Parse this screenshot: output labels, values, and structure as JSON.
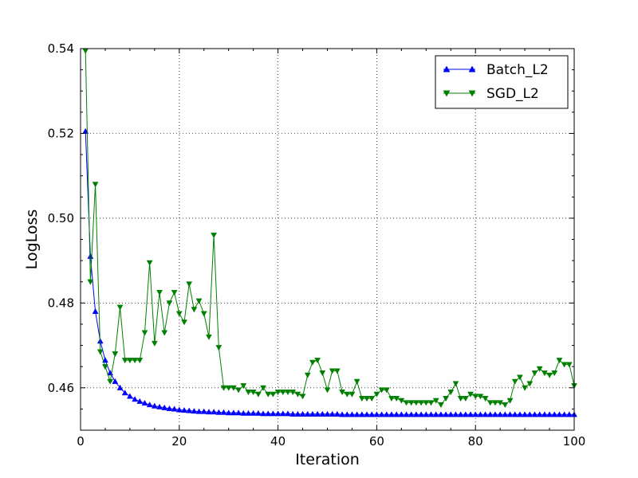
{
  "chart_data": {
    "type": "line",
    "title": "",
    "xlabel": "Iteration",
    "ylabel": "LogLoss",
    "xlim": [
      0,
      100
    ],
    "ylim": [
      0.45,
      0.54
    ],
    "x_ticks": [
      0,
      20,
      40,
      60,
      80,
      100
    ],
    "x_tick_labels": [
      "0",
      "20",
      "40",
      "60",
      "80",
      "100"
    ],
    "y_ticks": [
      0.46,
      0.48,
      0.5,
      0.52,
      0.54
    ],
    "y_tick_labels": [
      "0.46",
      "0.48",
      "0.50",
      "0.52",
      "0.54"
    ],
    "grid": true,
    "legend_position": "top-right",
    "series": [
      {
        "name": "Batch_L2",
        "color": "#0000ff",
        "marker": "triangle-up",
        "x": [
          1,
          2,
          3,
          4,
          5,
          6,
          7,
          8,
          9,
          10,
          11,
          12,
          13,
          14,
          15,
          16,
          17,
          18,
          19,
          20,
          21,
          22,
          23,
          24,
          25,
          26,
          27,
          28,
          29,
          30,
          31,
          32,
          33,
          34,
          35,
          36,
          37,
          38,
          39,
          40,
          41,
          42,
          43,
          44,
          45,
          46,
          47,
          48,
          49,
          50,
          51,
          52,
          53,
          54,
          55,
          56,
          57,
          58,
          59,
          60,
          61,
          62,
          63,
          64,
          65,
          66,
          67,
          68,
          69,
          70,
          71,
          72,
          73,
          74,
          75,
          76,
          77,
          78,
          79,
          80,
          81,
          82,
          83,
          84,
          85,
          86,
          87,
          88,
          89,
          90,
          91,
          92,
          93,
          94,
          95,
          96,
          97,
          98,
          99,
          100
        ],
        "values": [
          0.5205,
          0.491,
          0.478,
          0.471,
          0.4665,
          0.4635,
          0.4615,
          0.46,
          0.4588,
          0.458,
          0.4573,
          0.4568,
          0.4564,
          0.456,
          0.4557,
          0.4555,
          0.4553,
          0.4551,
          0.455,
          0.4548,
          0.4547,
          0.4546,
          0.4545,
          0.4544,
          0.4544,
          0.4543,
          0.4543,
          0.4542,
          0.4542,
          0.4541,
          0.4541,
          0.4541,
          0.454,
          0.454,
          0.454,
          0.454,
          0.4539,
          0.4539,
          0.4539,
          0.4539,
          0.4539,
          0.4539,
          0.4538,
          0.4538,
          0.4538,
          0.4538,
          0.4538,
          0.4538,
          0.4538,
          0.4538,
          0.4538,
          0.4538,
          0.4537,
          0.4537,
          0.4537,
          0.4537,
          0.4537,
          0.4537,
          0.4537,
          0.4537,
          0.4537,
          0.4537,
          0.4537,
          0.4537,
          0.4537,
          0.4537,
          0.4537,
          0.4537,
          0.4537,
          0.4537,
          0.4537,
          0.4537,
          0.4537,
          0.4537,
          0.4537,
          0.4537,
          0.4537,
          0.4537,
          0.4537,
          0.4537,
          0.4537,
          0.4537,
          0.4537,
          0.4537,
          0.4537,
          0.4537,
          0.4537,
          0.4537,
          0.4537,
          0.4537,
          0.4537,
          0.4537,
          0.4537,
          0.4537,
          0.4537,
          0.4537,
          0.4537,
          0.4537,
          0.4537,
          0.4537
        ]
      },
      {
        "name": "SGD_L2",
        "color": "#008000",
        "marker": "triangle-down",
        "x": [
          1,
          2,
          3,
          4,
          5,
          6,
          7,
          8,
          9,
          10,
          11,
          12,
          13,
          14,
          15,
          16,
          17,
          18,
          19,
          20,
          21,
          22,
          23,
          24,
          25,
          26,
          27,
          28,
          29,
          30,
          31,
          32,
          33,
          34,
          35,
          36,
          37,
          38,
          39,
          40,
          41,
          42,
          43,
          44,
          45,
          46,
          47,
          48,
          49,
          50,
          51,
          52,
          53,
          54,
          55,
          56,
          57,
          58,
          59,
          60,
          61,
          62,
          63,
          64,
          65,
          66,
          67,
          68,
          69,
          70,
          71,
          72,
          73,
          74,
          75,
          76,
          77,
          78,
          79,
          80,
          81,
          82,
          83,
          84,
          85,
          86,
          87,
          88,
          89,
          90,
          91,
          92,
          93,
          94,
          95,
          96,
          97,
          98,
          99,
          100
        ],
        "values": [
          0.5395,
          0.485,
          0.508,
          0.4685,
          0.465,
          0.4615,
          0.468,
          0.479,
          0.4665,
          0.4665,
          0.4665,
          0.4665,
          0.473,
          0.4895,
          0.4705,
          0.4825,
          0.473,
          0.48,
          0.4825,
          0.4775,
          0.4755,
          0.4845,
          0.4785,
          0.4805,
          0.4775,
          0.472,
          0.496,
          0.4695,
          0.46,
          0.46,
          0.46,
          0.4595,
          0.4605,
          0.459,
          0.459,
          0.4585,
          0.46,
          0.4585,
          0.4585,
          0.459,
          0.459,
          0.459,
          0.459,
          0.4585,
          0.458,
          0.463,
          0.466,
          0.4665,
          0.4635,
          0.4595,
          0.464,
          0.464,
          0.459,
          0.4585,
          0.4585,
          0.4615,
          0.4575,
          0.4575,
          0.4575,
          0.4585,
          0.4595,
          0.4595,
          0.4575,
          0.4575,
          0.457,
          0.4565,
          0.4565,
          0.4565,
          0.4565,
          0.4565,
          0.4565,
          0.457,
          0.456,
          0.4575,
          0.459,
          0.461,
          0.4575,
          0.4575,
          0.4585,
          0.458,
          0.458,
          0.4575,
          0.4565,
          0.4565,
          0.4565,
          0.456,
          0.457,
          0.4615,
          0.4625,
          0.46,
          0.461,
          0.4635,
          0.4645,
          0.4635,
          0.463,
          0.4635,
          0.4665,
          0.4655,
          0.4655,
          0.4605
        ]
      }
    ]
  }
}
